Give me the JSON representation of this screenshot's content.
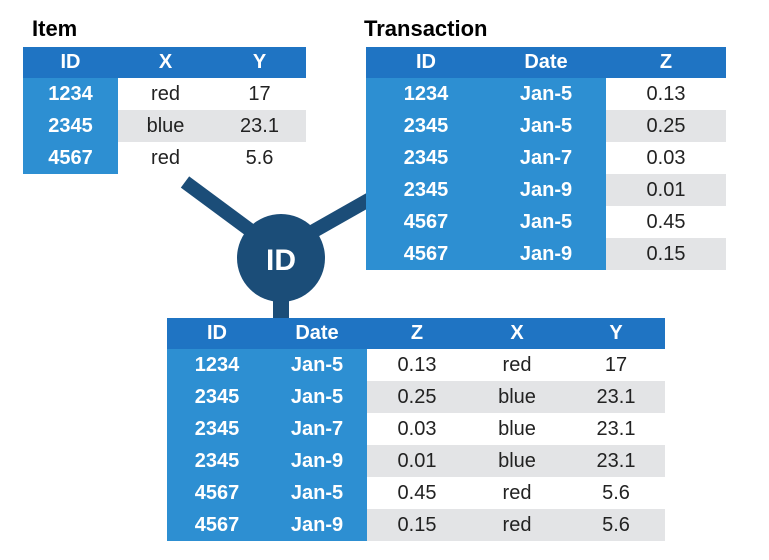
{
  "item": {
    "title": "Item",
    "headers": [
      "ID",
      "X",
      "Y"
    ],
    "rows": [
      [
        "1234",
        "red",
        "17"
      ],
      [
        "2345",
        "blue",
        "23.1"
      ],
      [
        "4567",
        "red",
        "5.6"
      ]
    ]
  },
  "transaction": {
    "title": "Transaction",
    "headers": [
      "ID",
      "Date",
      "Z"
    ],
    "rows": [
      [
        "1234",
        "Jan-5",
        "0.13"
      ],
      [
        "2345",
        "Jan-5",
        "0.25"
      ],
      [
        "2345",
        "Jan-7",
        "0.03"
      ],
      [
        "2345",
        "Jan-9",
        "0.01"
      ],
      [
        "4567",
        "Jan-5",
        "0.45"
      ],
      [
        "4567",
        "Jan-9",
        "0.15"
      ]
    ]
  },
  "join_key": {
    "label": "ID"
  },
  "joined": {
    "headers": [
      "ID",
      "Date",
      "Z",
      "X",
      "Y"
    ],
    "rows": [
      [
        "1234",
        "Jan-5",
        "0.13",
        "red",
        "17"
      ],
      [
        "2345",
        "Jan-5",
        "0.25",
        "blue",
        "23.1"
      ],
      [
        "2345",
        "Jan-7",
        "0.03",
        "blue",
        "23.1"
      ],
      [
        "2345",
        "Jan-9",
        "0.01",
        "blue",
        "23.1"
      ],
      [
        "4567",
        "Jan-5",
        "0.45",
        "red",
        "5.6"
      ],
      [
        "4567",
        "Jan-9",
        "0.15",
        "red",
        "5.6"
      ]
    ]
  },
  "colors": {
    "header": "#1f74c3",
    "key_column": "#2d8fd2",
    "connector": "#1b4d78",
    "alt_row": "#e3e4e6"
  }
}
